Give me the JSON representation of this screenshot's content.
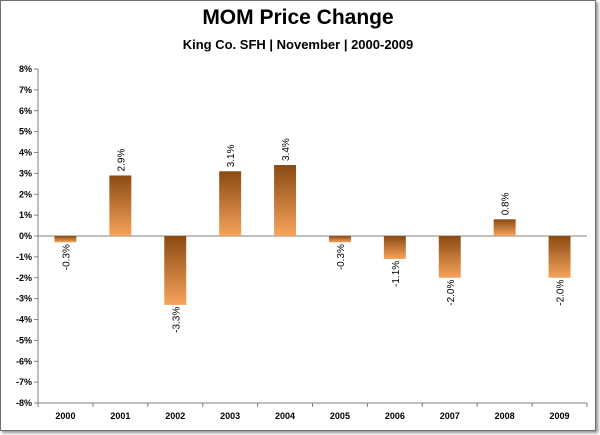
{
  "chart_data": {
    "type": "bar",
    "title": "MOM Price Change",
    "subtitle": "King Co. SFH | November | 2000-2009",
    "categories": [
      "2000",
      "2001",
      "2002",
      "2003",
      "2004",
      "2005",
      "2006",
      "2007",
      "2008",
      "2009"
    ],
    "values": [
      -0.3,
      2.9,
      -3.3,
      3.1,
      3.4,
      -0.3,
      -1.1,
      -2.0,
      0.8,
      -2.0
    ],
    "data_labels": [
      "-0.3%",
      "2.9%",
      "-3.3%",
      "3.1%",
      "3.4%",
      "-0.3%",
      "-1.1%",
      "-2.0%",
      "0.8%",
      "-2.0%"
    ],
    "ylim": [
      -8,
      8
    ],
    "y_ticks": [
      "8%",
      "7%",
      "6%",
      "5%",
      "4%",
      "3%",
      "2%",
      "1%",
      "0%",
      "-1%",
      "-2%",
      "-3%",
      "-4%",
      "-5%",
      "-6%",
      "-7%",
      "-8%"
    ],
    "y_tick_values": [
      8,
      7,
      6,
      5,
      4,
      3,
      2,
      1,
      0,
      -1,
      -2,
      -3,
      -4,
      -5,
      -6,
      -7,
      -8
    ],
    "grid": false,
    "legend": "none",
    "colors": {
      "bar_dark": "#8a4a12",
      "bar_light": "#f7a35c",
      "axis": "#808080"
    }
  }
}
